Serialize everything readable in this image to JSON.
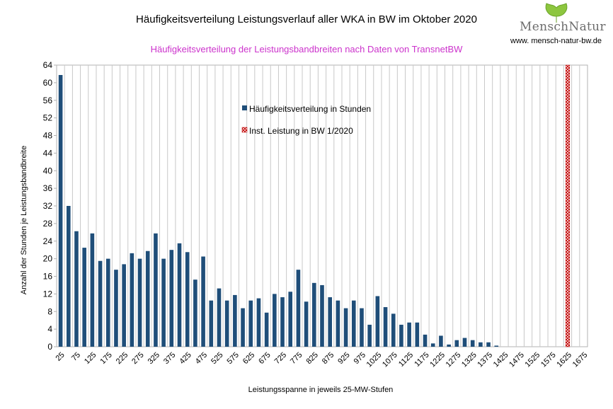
{
  "chart_data": {
    "type": "bar",
    "title": "Häufigkeitsverteilung Leistungsverlauf aller WKA in BW im Oktober 2020",
    "subtitle": "Häufigkeitsverteilung der Leistungsbandbreiten nach Daten von TransnetBW",
    "xlabel": "Leistungsspanne in jeweils 25-MW-Stufen",
    "ylabel": "Anzahl der Stunden je Leistungsbandbreite",
    "ylim": [
      0,
      64
    ],
    "ytick_step": 4,
    "categories": [
      25,
      50,
      75,
      100,
      125,
      150,
      175,
      200,
      225,
      250,
      275,
      300,
      325,
      350,
      375,
      400,
      425,
      450,
      475,
      500,
      525,
      550,
      575,
      600,
      625,
      650,
      675,
      700,
      725,
      750,
      775,
      800,
      825,
      850,
      875,
      900,
      925,
      950,
      975,
      1000,
      1025,
      1050,
      1075,
      1100,
      1125,
      1150,
      1175,
      1200,
      1225,
      1250,
      1275,
      1300,
      1325,
      1350,
      1375,
      1400,
      1425,
      1450,
      1475,
      1500,
      1525,
      1550,
      1575,
      1600,
      1625,
      1650,
      1675
    ],
    "xtick_labels": [
      "25",
      "75",
      "125",
      "175",
      "225",
      "275",
      "325",
      "375",
      "425",
      "475",
      "525",
      "575",
      "625",
      "675",
      "725",
      "775",
      "825",
      "875",
      "925",
      "975",
      "1025",
      "1075",
      "1125",
      "1175",
      "1225",
      "1275",
      "1325",
      "1375",
      "1425",
      "1475",
      "1525",
      "1575",
      "1625",
      "1675"
    ],
    "series": [
      {
        "name": "Häufigkeitsverteilung in Stunden",
        "color": "#1f4e79",
        "values": [
          61.75,
          32,
          26.25,
          22.5,
          25.75,
          19.5,
          20,
          17.5,
          18.75,
          21.25,
          20,
          21.75,
          25.75,
          20,
          22,
          23.5,
          21.5,
          15.25,
          20.5,
          10.5,
          13.25,
          10.5,
          11.75,
          8.75,
          10.5,
          11,
          7.75,
          12,
          11.25,
          12.5,
          17.5,
          10.25,
          14.5,
          14,
          11.25,
          10.5,
          8.75,
          10.5,
          8.75,
          5,
          11.5,
          9,
          7.5,
          5,
          5.5,
          5.5,
          2.75,
          0.75,
          2.5,
          0.5,
          1.5,
          2,
          1.5,
          1,
          1,
          0.25,
          0,
          0,
          0,
          0,
          0,
          0,
          0,
          0,
          0,
          0,
          0
        ]
      },
      {
        "name": "Inst. Leistung in BW 1/2020",
        "color": "#c00000",
        "pattern": "crosshatch",
        "category_index": 64,
        "value": 64
      }
    ],
    "legend_position": "top-center",
    "grid": "vertical"
  },
  "branding": {
    "logo_text": "MenschNatur",
    "url": "www. mensch-natur-bw.de"
  }
}
